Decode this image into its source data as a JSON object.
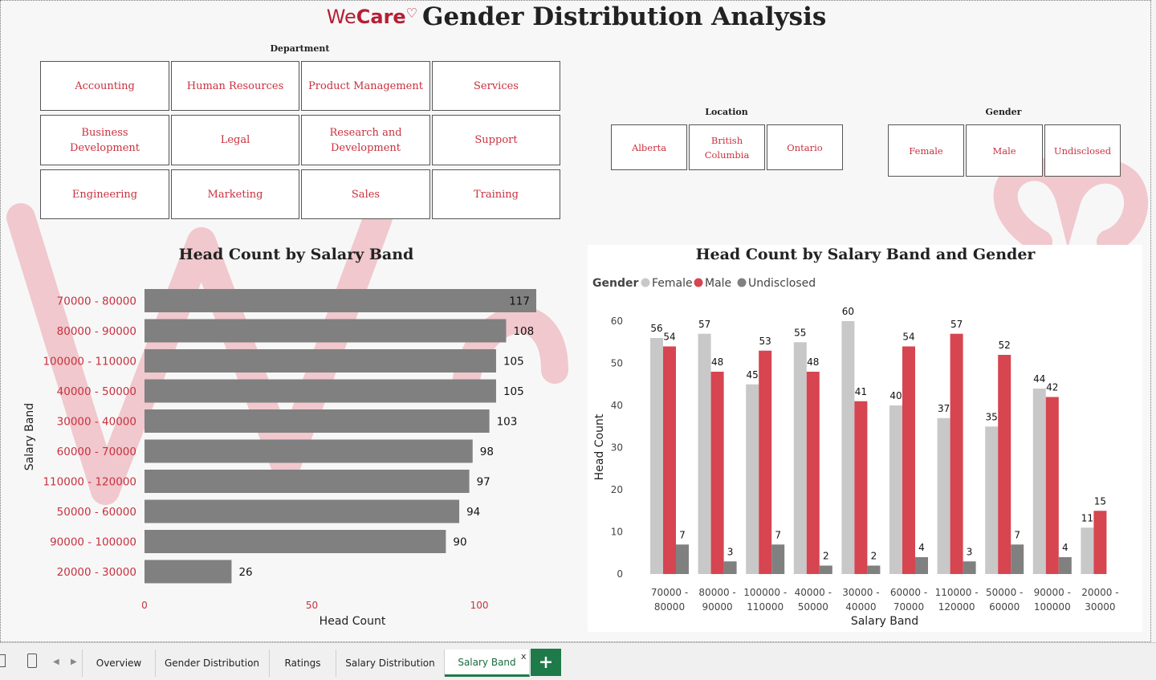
{
  "header": {
    "brand_we": "We",
    "brand_care": "Care",
    "brand_heart": "♡",
    "title": "Gender Distribution Analysis"
  },
  "department": {
    "title": "Department",
    "items": [
      "Accounting",
      "Human Resources",
      "Product Management",
      "Services",
      "Business Development",
      "Legal",
      "Research and Development",
      "Support",
      "Engineering",
      "Marketing",
      "Sales",
      "Training"
    ]
  },
  "location": {
    "title": "Location",
    "items": [
      "Alberta",
      "British Columbia",
      "Ontario"
    ]
  },
  "gender": {
    "title": "Gender",
    "items": [
      "Female",
      "Male",
      "Undisclosed"
    ]
  },
  "chart_data": [
    {
      "type": "bar",
      "orientation": "horizontal",
      "title": "Head Count by Salary Band",
      "xlabel": "Head Count",
      "ylabel": "Salary Band",
      "categories": [
        "70000 - 80000",
        "80000 - 90000",
        "100000 - 110000",
        "40000 - 50000",
        "30000 - 40000",
        "60000 - 70000",
        "110000 - 120000",
        "50000 - 60000",
        "90000 - 100000",
        "20000 - 30000"
      ],
      "values": [
        117,
        108,
        105,
        105,
        103,
        98,
        97,
        94,
        90,
        26
      ],
      "xticks": [
        0,
        50,
        100
      ],
      "xlim": [
        0,
        117
      ],
      "color": "#808080"
    },
    {
      "type": "bar",
      "title": "Head Count by Salary Band and Gender",
      "legend_title": "Gender",
      "xlabel": "Salary Band",
      "ylabel": "Head Count",
      "categories": [
        [
          "70000 -",
          "80000"
        ],
        [
          "80000 -",
          "90000"
        ],
        [
          "100000 -",
          "110000"
        ],
        [
          "40000 -",
          "50000"
        ],
        [
          "30000 -",
          "40000"
        ],
        [
          "60000 -",
          "70000"
        ],
        [
          "110000 -",
          "120000"
        ],
        [
          "50000 -",
          "60000"
        ],
        [
          "90000 -",
          "100000"
        ],
        [
          "20000 -",
          "30000"
        ]
      ],
      "series": [
        {
          "name": "Female",
          "color": "#c8c8c8",
          "values": [
            56,
            57,
            45,
            55,
            60,
            40,
            37,
            35,
            44,
            11
          ]
        },
        {
          "name": "Male",
          "color": "#d64550",
          "values": [
            54,
            48,
            53,
            48,
            41,
            54,
            57,
            52,
            42,
            15
          ]
        },
        {
          "name": "Undisclosed",
          "color": "#808080",
          "values": [
            7,
            3,
            7,
            2,
            2,
            4,
            3,
            7,
            4,
            null
          ]
        }
      ],
      "yticks": [
        0,
        10,
        20,
        30,
        40,
        50,
        60
      ],
      "ylim": [
        0,
        60
      ],
      "legend_position": "top-left"
    }
  ],
  "tabs": {
    "items": [
      "Overview",
      "Gender Distribution",
      "Ratings",
      "Salary Distribution",
      "Salary Band"
    ],
    "active": "Salary Band",
    "close_glyph": "x",
    "add_glyph": "+"
  }
}
